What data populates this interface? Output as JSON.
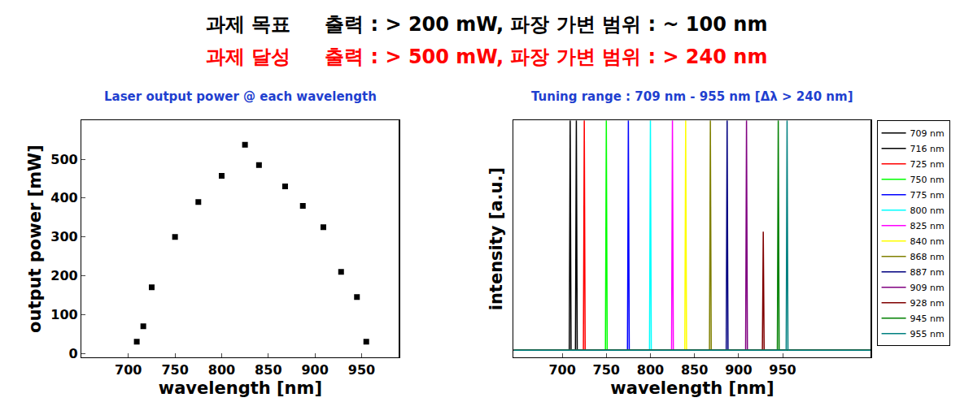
{
  "header": [
    {
      "text": "과제 목표     출력 : > 200 mW, 파장 가변 범위 : ~ 100 nm",
      "color": "#000000"
    },
    {
      "text": "과제 달성     출력 : > 500 mW, 파장 가변 범위 : > 240 nm",
      "color": "#ff0000"
    }
  ],
  "chart_data": [
    {
      "type": "scatter",
      "title": "Laser output power @ each wavelength",
      "x_label": "wavelength [nm]",
      "y_label": "output power [mW]",
      "x": [
        709,
        716,
        725,
        750,
        775,
        800,
        825,
        840,
        868,
        887,
        909,
        928,
        945,
        955
      ],
      "values": [
        30,
        70,
        170,
        300,
        390,
        457,
        537,
        485,
        430,
        380,
        325,
        210,
        145,
        30
      ],
      "color": "#000000",
      "marker": "square",
      "xlim": [
        650,
        990
      ],
      "xticks": [
        700,
        750,
        800,
        850,
        900,
        950
      ],
      "ylim": [
        -10,
        600
      ],
      "yticks": [
        0,
        100,
        200,
        300,
        400,
        500
      ],
      "grid": false
    },
    {
      "type": "line",
      "title": "Tuning range : 709 nm - 955 nm [Δλ > 240 nm]",
      "x_label": "wavelength [nm]",
      "y_label": "intensity [a.u.]",
      "series": [
        {
          "name": "709 nm",
          "color": "#000000",
          "x": [
            645,
            708,
            709,
            710,
            1050
          ],
          "values": [
            0.03,
            0.03,
            1,
            0.03,
            0.03
          ]
        },
        {
          "name": "716 nm",
          "color": "#000000",
          "x": [
            645,
            715,
            716,
            717,
            1050
          ],
          "values": [
            0.03,
            0.03,
            1,
            0.03,
            0.03
          ]
        },
        {
          "name": "725 nm",
          "color": "#ff0000",
          "x": [
            645,
            724,
            725,
            726,
            1050
          ],
          "values": [
            0.03,
            0.03,
            1,
            0.03,
            0.03
          ]
        },
        {
          "name": "750 nm",
          "color": "#00ff00",
          "x": [
            645,
            749,
            750,
            751,
            1050
          ],
          "values": [
            0.03,
            0.03,
            1,
            0.03,
            0.03
          ]
        },
        {
          "name": "775 nm",
          "color": "#0000ff",
          "x": [
            645,
            774,
            775,
            776,
            1050
          ],
          "values": [
            0.03,
            0.03,
            1,
            0.03,
            0.03
          ]
        },
        {
          "name": "800 nm",
          "color": "#00ffff",
          "x": [
            645,
            799,
            800,
            801,
            1050
          ],
          "values": [
            0.03,
            0.03,
            1,
            0.03,
            0.03
          ]
        },
        {
          "name": "825 nm",
          "color": "#ff00ff",
          "x": [
            645,
            824,
            825,
            826,
            1050
          ],
          "values": [
            0.03,
            0.03,
            1,
            0.03,
            0.03
          ]
        },
        {
          "name": "840 nm",
          "color": "#ffff00",
          "x": [
            645,
            839,
            840,
            841,
            1050
          ],
          "values": [
            0.03,
            0.03,
            1,
            0.03,
            0.03
          ]
        },
        {
          "name": "868 nm",
          "color": "#808000",
          "x": [
            645,
            867,
            868,
            869,
            1050
          ],
          "values": [
            0.03,
            0.03,
            1,
            0.03,
            0.03
          ]
        },
        {
          "name": "887 nm",
          "color": "#000080",
          "x": [
            645,
            886,
            887,
            888,
            1050
          ],
          "values": [
            0.03,
            0.03,
            1,
            0.03,
            0.03
          ]
        },
        {
          "name": "909 nm",
          "color": "#800080",
          "x": [
            645,
            908,
            909,
            910,
            1050
          ],
          "values": [
            0.03,
            0.03,
            1,
            0.03,
            0.03
          ]
        },
        {
          "name": "928 nm",
          "color": "#800000",
          "x": [
            645,
            927,
            928,
            929,
            1050
          ],
          "values": [
            0.03,
            0.03,
            0.53,
            0.03,
            0.03
          ]
        },
        {
          "name": "945 nm",
          "color": "#008000",
          "x": [
            645,
            944,
            945,
            946,
            1050
          ],
          "values": [
            0.03,
            0.03,
            1,
            0.03,
            0.03
          ]
        },
        {
          "name": "955 nm",
          "color": "#008080",
          "x": [
            645,
            954,
            955,
            956,
            1050
          ],
          "values": [
            0.03,
            0.03,
            1,
            0.03,
            0.03
          ]
        }
      ],
      "xlim": [
        645,
        1050
      ],
      "xticks": [
        700,
        750,
        800,
        850,
        900,
        950
      ],
      "ylim": [
        0,
        1
      ],
      "tick_labels": "x",
      "legend": "right",
      "grid": false
    }
  ]
}
